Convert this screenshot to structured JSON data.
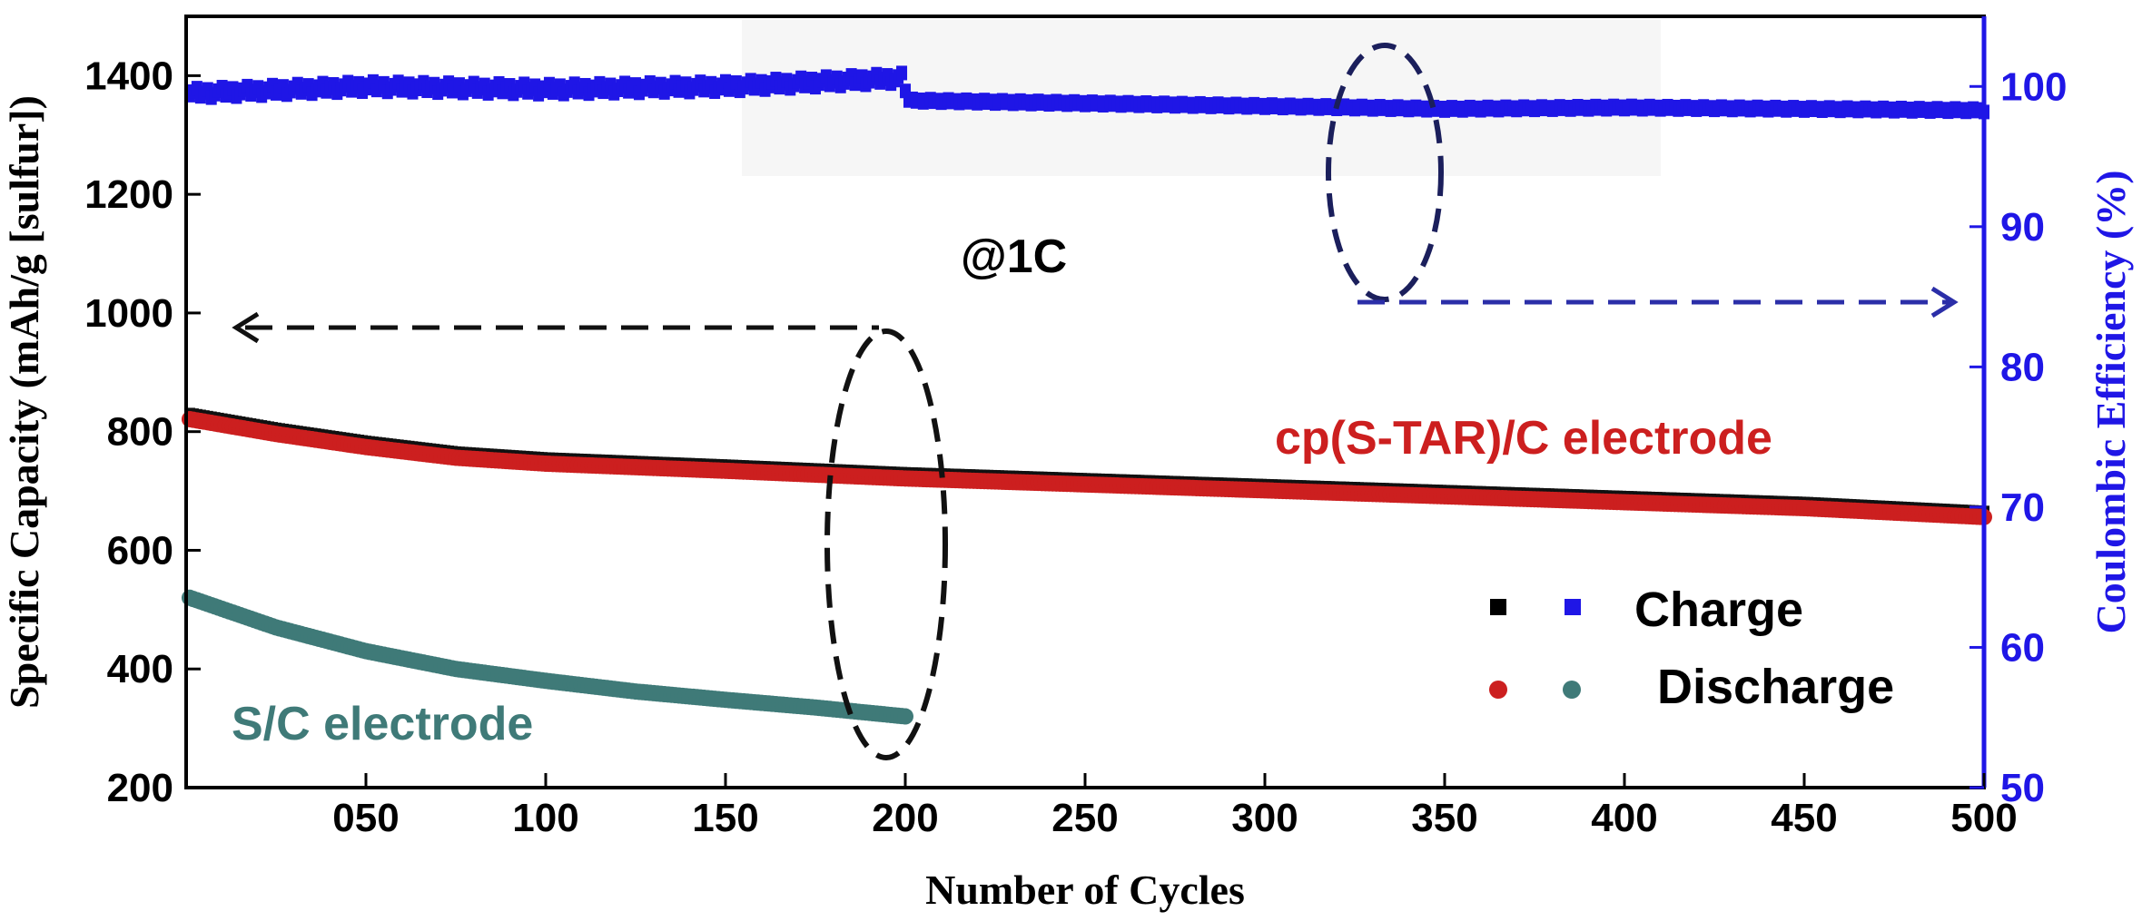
{
  "chart_data": {
    "type": "scatter",
    "xlabel": "Number of Cycles",
    "ylabel": "Specific Capacity (mAh/g [sulfur])",
    "y2label": "Coulombic Efficiency (%)",
    "xlim": [
      0,
      500
    ],
    "ylim": [
      200,
      1500
    ],
    "y2lim": [
      50,
      105
    ],
    "x_ticks": [
      50,
      100,
      150,
      200,
      250,
      300,
      350,
      400,
      450,
      500
    ],
    "x_tick_labels": [
      "050",
      "100",
      "150",
      "200",
      "250",
      "300",
      "350",
      "400",
      "450",
      "500"
    ],
    "y_ticks": [
      200,
      400,
      600,
      800,
      1000,
      1200,
      1400
    ],
    "y2_ticks": [
      50,
      60,
      70,
      80,
      90,
      100
    ],
    "grid": false,
    "legend": {
      "placement": "lower-right",
      "entries": [
        {
          "label": "Charge",
          "markers": [
            "square-black",
            "square-blue"
          ]
        },
        {
          "label": "Discharge",
          "markers": [
            "circle-red",
            "circle-teal"
          ]
        }
      ]
    },
    "series": [
      {
        "name": "cp(S-TAR)/C electrode",
        "axis": "left",
        "color": "#cc1f1f",
        "charge_color": "#111111",
        "x": [
          1,
          25,
          50,
          75,
          100,
          150,
          200,
          250,
          300,
          350,
          400,
          450,
          500
        ],
        "y": [
          825,
          800,
          778,
          760,
          750,
          738,
          725,
          715,
          705,
          695,
          685,
          675,
          660
        ]
      },
      {
        "name": "S/C electrode",
        "axis": "left",
        "color": "#3f7a78",
        "x": [
          1,
          25,
          50,
          75,
          100,
          125,
          150,
          175,
          200
        ],
        "y": [
          520,
          470,
          430,
          400,
          380,
          362,
          348,
          335,
          320
        ]
      },
      {
        "name": "Coulombic Efficiency",
        "axis": "right",
        "color": "#1f16e6",
        "x": [
          1,
          50,
          100,
          150,
          199,
          201,
          250,
          300,
          350,
          400,
          450,
          500
        ],
        "y": [
          99.5,
          100.0,
          99.8,
          100.0,
          100.6,
          99.0,
          98.8,
          98.6,
          98.4,
          98.5,
          98.4,
          98.3
        ]
      }
    ],
    "annotations": {
      "rate": "@1C",
      "label_cp": "cp(S-TAR)/C electrode",
      "label_sc": "S/C electrode"
    }
  },
  "colors": {
    "left_axis": "#000000",
    "right_axis": "#1f16e6",
    "highlight_box": "#eeeeee",
    "ellipse_top": "#1b1f5c",
    "arrow_right": "#2b2ea8"
  }
}
